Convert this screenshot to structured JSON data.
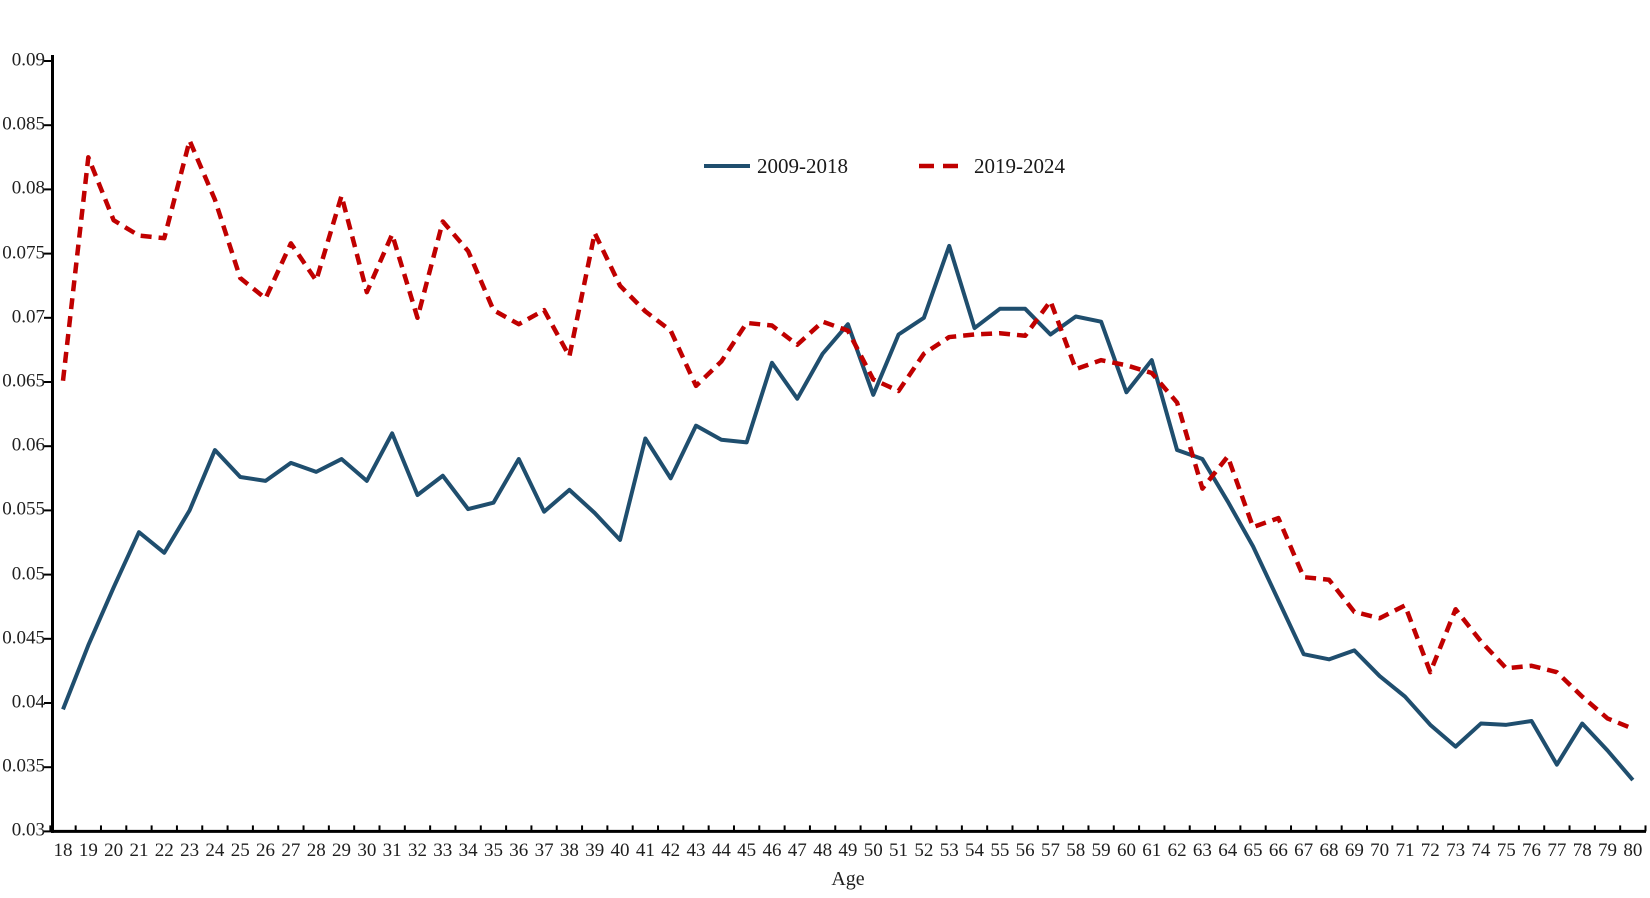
{
  "page": {
    "background": "#ffffff"
  },
  "chart_data": {
    "type": "line",
    "xlabel": "Age",
    "x": [
      18,
      19,
      20,
      21,
      22,
      23,
      24,
      25,
      26,
      27,
      28,
      29,
      30,
      31,
      32,
      33,
      34,
      35,
      36,
      37,
      38,
      39,
      40,
      41,
      42,
      43,
      44,
      45,
      46,
      47,
      48,
      49,
      50,
      51,
      52,
      53,
      54,
      55,
      56,
      57,
      58,
      59,
      60,
      61,
      62,
      63,
      64,
      65,
      66,
      67,
      68,
      69,
      70,
      71,
      72,
      73,
      74,
      75,
      76,
      77,
      78,
      79,
      80
    ],
    "ylim": [
      0.03,
      0.09
    ],
    "ytick_step": 0.005,
    "y_tick_labels": [
      "0.03",
      "0.035",
      "0.04",
      "0.045",
      "0.05",
      "0.055",
      "0.06",
      "0.065",
      "0.07",
      "0.075",
      "0.08",
      "0.085",
      "0.09"
    ],
    "grid": false,
    "legend_position": "top-center",
    "axis_color": "#000000",
    "label_color": "#1f1f1f",
    "series": [
      {
        "name": "2009-2018",
        "color": "#1f4e6e",
        "style": "solid",
        "values": [
          0.0395,
          0.0445,
          0.049,
          0.0533,
          0.0517,
          0.055,
          0.0597,
          0.0576,
          0.0573,
          0.0587,
          0.058,
          0.059,
          0.0573,
          0.061,
          0.0562,
          0.0577,
          0.0551,
          0.0556,
          0.059,
          0.0549,
          0.0566,
          0.0548,
          0.0527,
          0.0606,
          0.0575,
          0.0616,
          0.0605,
          0.0603,
          0.0665,
          0.0637,
          0.0672,
          0.0695,
          0.064,
          0.0687,
          0.07,
          0.0756,
          0.0692,
          0.0707,
          0.0707,
          0.0687,
          0.0701,
          0.0697,
          0.0642,
          0.0667,
          0.0597,
          0.059,
          0.0557,
          0.0522,
          0.048,
          0.0438,
          0.0434,
          0.0441,
          0.0421,
          0.0405,
          0.0383,
          0.0366,
          0.0384,
          0.0383,
          0.0386,
          0.0352,
          0.0384,
          0.0363,
          0.034
        ]
      },
      {
        "name": "2019-2024",
        "color": "#c00000",
        "style": "dashed",
        "values": [
          0.0651,
          0.0825,
          0.0776,
          0.0764,
          0.0762,
          0.0838,
          0.0792,
          0.0731,
          0.0715,
          0.0758,
          0.0729,
          0.0795,
          0.072,
          0.0765,
          0.07,
          0.0775,
          0.0752,
          0.0706,
          0.0695,
          0.0706,
          0.067,
          0.0766,
          0.0725,
          0.0705,
          0.069,
          0.0647,
          0.0666,
          0.0696,
          0.0694,
          0.0679,
          0.0697,
          0.069,
          0.0652,
          0.0643,
          0.0672,
          0.0685,
          0.0687,
          0.0688,
          0.0686,
          0.0713,
          0.066,
          0.0667,
          0.0663,
          0.0657,
          0.0634,
          0.0567,
          0.0592,
          0.0537,
          0.0544,
          0.0498,
          0.0496,
          0.0471,
          0.0466,
          0.0476,
          0.0424,
          0.0473,
          0.0448,
          0.0427,
          0.0429,
          0.0424,
          0.0405,
          0.0388,
          0.038
        ]
      }
    ]
  }
}
